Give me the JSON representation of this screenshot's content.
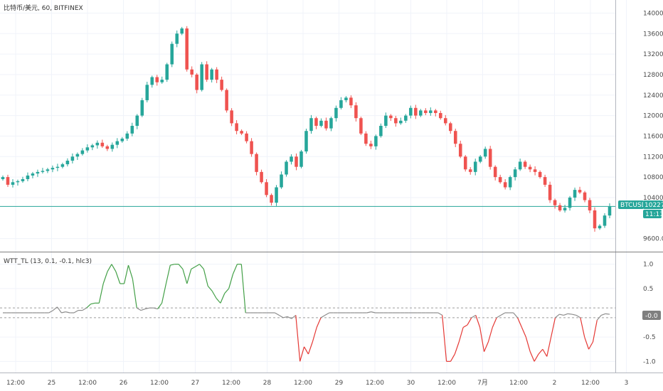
{
  "chart_data": [
    {
      "type": "candlestick",
      "title": "比特币/美元, 60, BITFINEX",
      "ylim": [
        9400,
        14200
      ],
      "y_ticks": [
        14000,
        13600,
        13200,
        12800,
        12400,
        12000,
        11600,
        11200,
        10800,
        10400,
        9600
      ],
      "y_tick_labels": [
        "14000.0",
        "13600.0",
        "13200.0",
        "12800.0",
        "12400.0",
        "12000.0",
        "11600.0",
        "11200.0",
        "10800.0",
        "10400.0",
        "9600.0"
      ],
      "x_tick_labels": [
        "12:00",
        "25",
        "12:00",
        "26",
        "12:00",
        "27",
        "12:00",
        "28",
        "12:00",
        "29",
        "12:00",
        "30",
        "12:00",
        "7月",
        "12:00",
        "2",
        "12:00",
        "3"
      ],
      "price_line": 10227.0,
      "badge_label": "BTCUSD",
      "badge_value": "10227.0",
      "badge_time": "11:11",
      "series": [
        {
          "type": "close",
          "values": [
            10800,
            10650,
            10700,
            10720,
            10760,
            10830,
            10870,
            10900,
            10920,
            10950,
            10980,
            11000,
            11050,
            11120,
            11200,
            11250,
            11320,
            11380,
            11420,
            11470,
            11400,
            11350,
            11430,
            11500,
            11550,
            11650,
            11800,
            12000,
            12300,
            12600,
            12750,
            12650,
            12700,
            13000,
            13400,
            13600,
            13700,
            12900,
            12800,
            12500,
            13000,
            12700,
            12900,
            12700,
            12500,
            12100,
            11850,
            11700,
            11650,
            11500,
            11250,
            10900,
            10700,
            10450,
            10300,
            10600,
            10850,
            11100,
            11200,
            11000,
            11300,
            11700,
            11950,
            11800,
            11900,
            11750,
            11950,
            12150,
            12300,
            12350,
            12200,
            11950,
            11650,
            11450,
            11400,
            11600,
            11800,
            12000,
            11950,
            11850,
            11900,
            12000,
            12150,
            12000,
            12100,
            12050,
            12100,
            12050,
            11950,
            11850,
            11700,
            11450,
            11200,
            10950,
            10900,
            11100,
            11200,
            11350,
            11000,
            10800,
            10700,
            10600,
            10800,
            10950,
            11100,
            11000,
            10950,
            10900,
            10800,
            10650,
            10350,
            10250,
            10150,
            10200,
            10400,
            10550,
            10500,
            10350,
            10150,
            9800,
            9850,
            10050,
            10227
          ]
        }
      ]
    },
    {
      "type": "line",
      "title": "WTT_TL (13, 0.1, -0.1, hlc3)",
      "ylim": [
        -1.2,
        1.2
      ],
      "y_ticks": [
        1.0,
        0.5,
        -0.5,
        -1.0
      ],
      "y_tick_labels": [
        "1.0",
        "0.5",
        "-0.5",
        "-1.0"
      ],
      "reference_lines": [
        0.1,
        -0.1
      ],
      "value_label": "-0.0",
      "values": [
        0.0,
        0.0,
        0.0,
        0.0,
        0.0,
        0.0,
        0.0,
        0.0,
        0.0,
        0.0,
        0.0,
        0.0,
        0.05,
        0.12,
        0.0,
        0.02,
        0.0,
        0.0,
        0.05,
        0.05,
        0.1,
        0.18,
        0.2,
        0.2,
        0.6,
        0.85,
        1.0,
        0.85,
        0.6,
        0.6,
        0.98,
        0.7,
        0.1,
        0.05,
        0.08,
        0.1,
        0.1,
        0.08,
        0.2,
        0.6,
        0.98,
        1.0,
        1.0,
        0.9,
        0.6,
        0.9,
        0.95,
        1.0,
        0.9,
        0.55,
        0.45,
        0.3,
        0.2,
        0.4,
        0.5,
        0.8,
        1.0,
        1.0,
        0.0,
        0.0,
        0.0,
        0.0,
        0.0,
        0.0,
        0.0,
        0.0,
        -0.05,
        -0.1,
        -0.08,
        -0.12,
        -0.05,
        -1.0,
        -0.7,
        -0.85,
        -0.6,
        -0.3,
        -0.1,
        -0.05,
        0.0,
        0.0,
        0.0,
        0.0,
        0.0,
        0.0,
        0.0,
        0.0,
        0.0,
        0.0,
        0.02,
        0.0,
        0.0,
        0.0,
        0.0,
        0.0,
        0.0,
        0.0,
        0.0,
        0.0,
        0.0,
        0.0,
        0.0,
        0.0,
        0.0,
        0.0,
        0.0,
        -0.05,
        -1.0,
        -1.0,
        -0.85,
        -0.6,
        -0.3,
        -0.25,
        -0.1,
        -0.05,
        -0.3,
        -0.8,
        -0.6,
        -0.3,
        -0.1,
        -0.05,
        0.0,
        0.0,
        0.0,
        -0.1,
        -0.3,
        -0.5,
        -0.8,
        -1.0,
        -0.85,
        -0.75,
        -0.9,
        -0.5,
        -0.1,
        -0.03,
        -0.05,
        -0.02,
        -0.03,
        -0.05,
        -0.1,
        -0.5,
        -0.75,
        -0.6,
        -0.15,
        -0.05,
        -0.02,
        -0.03
      ]
    }
  ]
}
